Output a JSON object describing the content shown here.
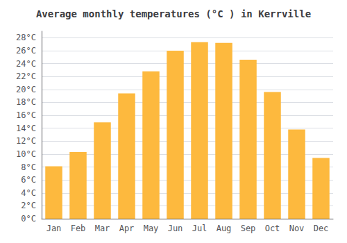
{
  "chart_data": {
    "type": "bar",
    "title": "Average monthly temperatures (°C ) in Kerrville",
    "categories": [
      "Jan",
      "Feb",
      "Mar",
      "Apr",
      "May",
      "Jun",
      "Jul",
      "Aug",
      "Sep",
      "Oct",
      "Nov",
      "Dec"
    ],
    "values": [
      8.1,
      10.3,
      14.9,
      19.4,
      22.8,
      26.0,
      27.3,
      27.2,
      24.6,
      19.6,
      13.8,
      9.4
    ],
    "color": "#FDB93E",
    "ylim": [
      0,
      29
    ],
    "yticks": [
      {
        "value": 0,
        "label": "0°C"
      },
      {
        "value": 2,
        "label": "2°C"
      },
      {
        "value": 4,
        "label": "4°C"
      },
      {
        "value": 6,
        "label": "6°C"
      },
      {
        "value": 8,
        "label": "8°C"
      },
      {
        "value": 10,
        "label": "10°C"
      },
      {
        "value": 12,
        "label": "12°C"
      },
      {
        "value": 14,
        "label": "14°C"
      },
      {
        "value": 16,
        "label": "16°C"
      },
      {
        "value": 18,
        "label": "18°C"
      },
      {
        "value": 20,
        "label": "20°C"
      },
      {
        "value": 22,
        "label": "22°C"
      },
      {
        "value": 24,
        "label": "24°C"
      },
      {
        "value": 26,
        "label": "26°C"
      },
      {
        "value": 28,
        "label": "28°C"
      }
    ],
    "grid": true
  }
}
